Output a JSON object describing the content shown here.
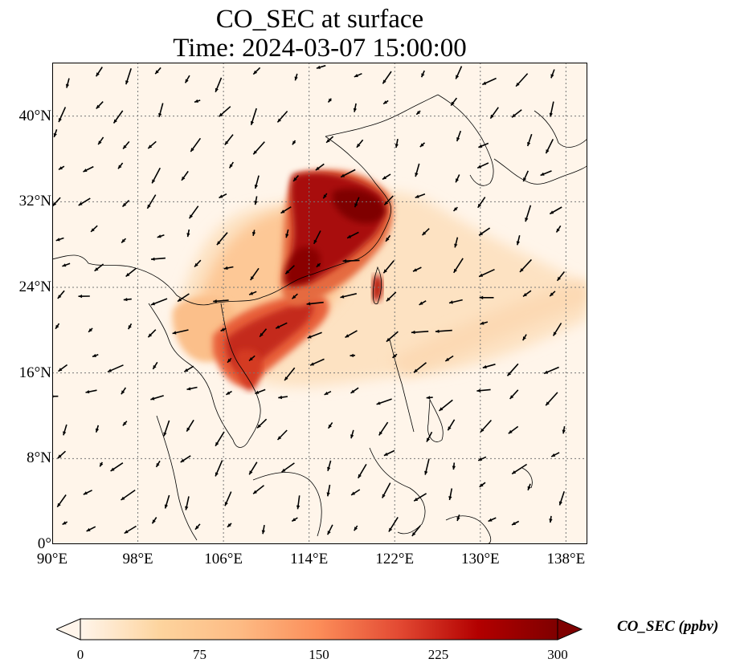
{
  "title": {
    "line1": "CO_SEC at surface",
    "line2": "Time: 2024-03-07 15:00:00"
  },
  "map": {
    "extent": {
      "lon": [
        90,
        140
      ],
      "lat": [
        0,
        45
      ]
    },
    "lon_ticks": [
      {
        "value": 90,
        "label": "90°E"
      },
      {
        "value": 98,
        "label": "98°E"
      },
      {
        "value": 106,
        "label": "106°E"
      },
      {
        "value": 114,
        "label": "114°E"
      },
      {
        "value": 122,
        "label": "122°E"
      },
      {
        "value": 130,
        "label": "130°E"
      },
      {
        "value": 138,
        "label": "138°E"
      }
    ],
    "lat_ticks": [
      {
        "value": 0,
        "label": "0°"
      },
      {
        "value": 8,
        "label": "8°N"
      },
      {
        "value": 16,
        "label": "16°N"
      },
      {
        "value": 24,
        "label": "24°N"
      },
      {
        "value": 32,
        "label": "32°N"
      },
      {
        "value": 40,
        "label": "40°N"
      }
    ],
    "gridlines": "dotted",
    "background_color": "#fff5ea"
  },
  "colorbar": {
    "label": "CO_SEC (ppbv)",
    "range": [
      0,
      300
    ],
    "ticks": [
      {
        "value": 0,
        "label": "0"
      },
      {
        "value": 75,
        "label": "75"
      },
      {
        "value": 150,
        "label": "150"
      },
      {
        "value": 225,
        "label": "225"
      },
      {
        "value": 300,
        "label": "300"
      }
    ],
    "colormap": [
      "#fff5eb",
      "#fdd49e",
      "#fdbb84",
      "#fc8d59",
      "#e34a33",
      "#b30000",
      "#7f0000"
    ],
    "extend": "both"
  }
}
